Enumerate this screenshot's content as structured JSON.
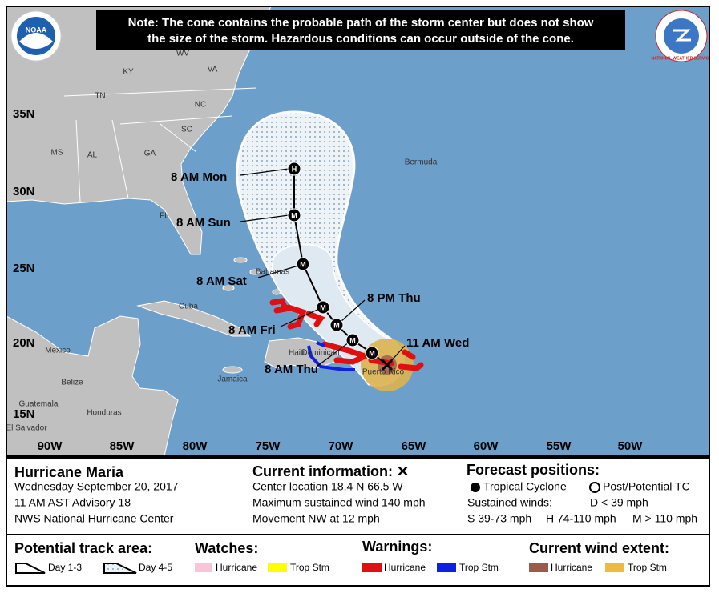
{
  "note": [
    "Note: The cone contains the probable path of the storm center but does not show",
    "the size of the storm. Hazardous conditions can occur outside of the cone."
  ],
  "logos": {
    "noaa": "NOAA",
    "nws": "NATIONAL WEATHER SERVICE"
  },
  "map": {
    "lat_labels": [
      "35N",
      "30N",
      "25N",
      "20N",
      "15N"
    ],
    "lon_labels": [
      "90W",
      "85W",
      "80W",
      "75W",
      "70W",
      "65W",
      "60W",
      "55W",
      "50W"
    ],
    "places": [
      "WV",
      "KY",
      "VA",
      "TN",
      "NC",
      "SC",
      "MS",
      "AL",
      "GA",
      "FL",
      "Bermuda",
      "Bahamas",
      "Cuba",
      "Mexico",
      "Haiti",
      "Dominican",
      "Jamaica",
      "Belize",
      "Guatemala",
      "Honduras",
      "El Salvador",
      "Puerto Rico"
    ]
  },
  "track": [
    {
      "label": "11 AM Wed"
    },
    {
      "marker": "M"
    },
    {
      "label": "8 AM Thu",
      "marker": "M"
    },
    {
      "label": "8 PM Thu",
      "marker": "M"
    },
    {
      "label": "8 AM Fri",
      "marker": "M"
    },
    {
      "label": "8 AM Sat",
      "marker": "M"
    },
    {
      "label": "8 AM Sun",
      "marker": "M"
    },
    {
      "label": "8 AM Mon",
      "marker": "H"
    }
  ],
  "info": {
    "storm": "Hurricane Maria",
    "date": "Wednesday September 20, 2017",
    "advisory": "11 AM AST Advisory 18",
    "center": "NWS National Hurricane Center",
    "current_title": "Current information: ✕",
    "location": "Center location 18.4 N 66.5 W",
    "wind": "Maximum sustained wind 140 mph",
    "movement": "Movement NW at 12 mph",
    "forecast_title": "Forecast positions:",
    "tropical": "Tropical Cyclone",
    "post": "Post/Potential TC",
    "sustained": "Sustained winds:",
    "d": "D < 39 mph",
    "s": "S 39-73 mph",
    "h": "H 74-110 mph",
    "m": "M > 110 mph"
  },
  "legend": {
    "track_title": "Potential track area:",
    "day13": "Day 1-3",
    "day45": "Day 4-5",
    "watches_title": "Watches:",
    "watch_hurricane": "Hurricane",
    "watch_ts": "Trop Stm",
    "warnings_title": "Warnings:",
    "warn_hurricane": "Hurricane",
    "warn_ts": "Trop Stm",
    "wind_title": "Current wind extent:",
    "wind_hurricane": "Hurricane",
    "wind_ts": "Trop Stm"
  }
}
